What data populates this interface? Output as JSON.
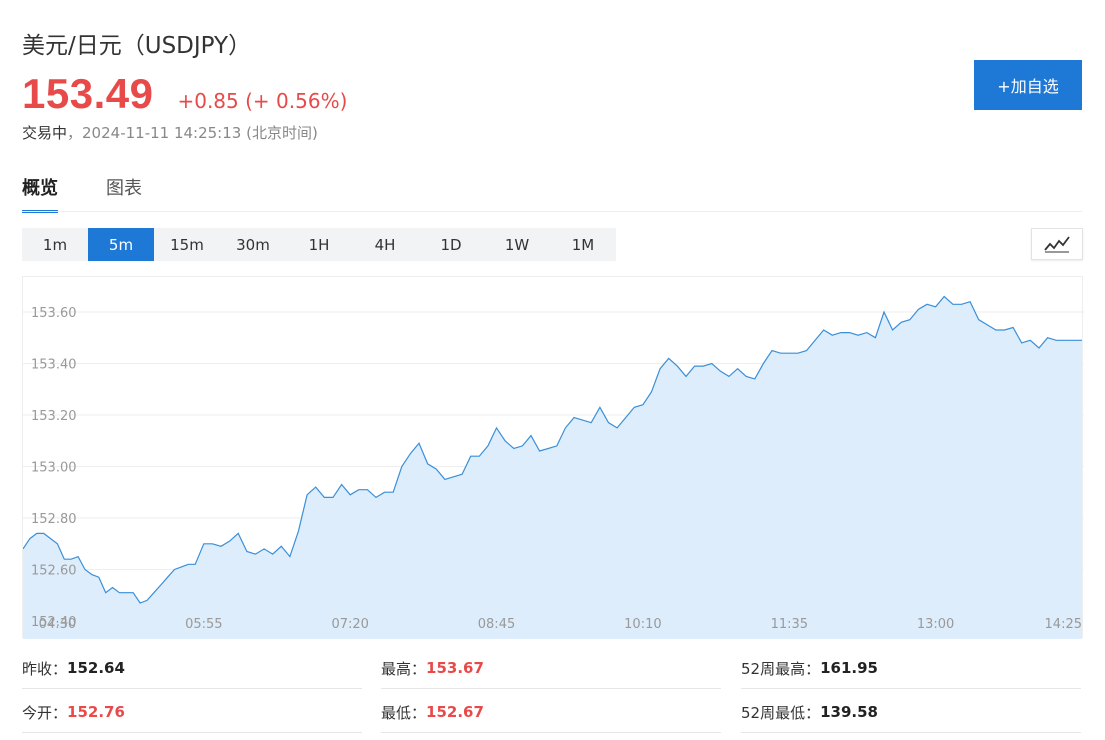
{
  "header": {
    "title": "美元/日元（USDJPY）",
    "price": "153.49",
    "change": "+0.85 (+ 0.56%)",
    "status_label": "交易中",
    "timestamp": "，2024-11-11 14:25:13 (北京时间)",
    "add_button_label": "+加自选"
  },
  "tabs": [
    {
      "label": "概览",
      "active": true
    },
    {
      "label": "图表",
      "active": false
    }
  ],
  "intervals": [
    {
      "label": "1m",
      "active": false
    },
    {
      "label": "5m",
      "active": true
    },
    {
      "label": "15m",
      "active": false
    },
    {
      "label": "30m",
      "active": false
    },
    {
      "label": "1H",
      "active": false
    },
    {
      "label": "4H",
      "active": false
    },
    {
      "label": "1D",
      "active": false
    },
    {
      "label": "1W",
      "active": false
    },
    {
      "label": "1M",
      "active": false
    }
  ],
  "chart_type_icon": "line-chart-icon",
  "colors": {
    "accent": "#1e78d6",
    "up": "#e84a4a",
    "line": "#3a8fd9",
    "fill": "#deedfb"
  },
  "chart_data": {
    "type": "area",
    "title": "",
    "xlabel": "",
    "ylabel": "",
    "ylim": [
      152.4,
      153.7
    ],
    "y_ticks": [
      "152.40",
      "152.60",
      "152.80",
      "153.00",
      "153.20",
      "153.40",
      "153.60"
    ],
    "x_ticks": [
      "04:30",
      "05:55",
      "07:20",
      "08:45",
      "10:10",
      "11:35",
      "13:00",
      "14:25"
    ],
    "x_range_minutes": [
      250,
      865
    ],
    "series": [
      {
        "x_minutes": [
          250,
          254,
          258,
          262,
          266,
          270,
          274,
          278,
          282,
          286,
          290,
          294,
          298,
          302,
          306,
          310,
          314,
          318,
          322,
          326,
          330,
          334,
          338,
          342,
          346,
          350,
          355,
          360,
          365,
          370,
          375,
          380,
          385,
          390,
          395,
          400,
          405,
          410,
          415,
          420,
          425,
          430,
          435,
          440,
          445,
          450,
          455,
          460,
          465,
          470,
          475,
          480,
          485,
          490,
          495,
          500,
          505,
          510,
          515,
          520,
          525,
          530,
          535,
          540,
          545,
          550,
          555,
          560,
          565,
          570,
          575,
          580,
          585,
          590,
          595,
          600,
          605,
          610,
          615,
          620,
          625,
          630,
          635,
          640,
          645,
          650,
          655,
          660,
          665,
          670,
          675,
          680,
          685,
          690,
          695,
          700,
          705,
          710,
          715,
          720,
          725,
          730,
          735,
          740,
          745,
          750,
          755,
          760,
          765,
          770,
          775,
          780,
          785,
          790,
          795,
          800,
          805,
          810,
          815,
          820,
          825,
          830,
          835,
          840,
          845,
          850,
          855,
          860,
          865
        ],
        "values": [
          152.68,
          152.72,
          152.74,
          152.74,
          152.72,
          152.7,
          152.64,
          152.64,
          152.65,
          152.6,
          152.58,
          152.57,
          152.51,
          152.53,
          152.51,
          152.51,
          152.51,
          152.47,
          152.48,
          152.51,
          152.54,
          152.57,
          152.6,
          152.61,
          152.62,
          152.62,
          152.7,
          152.7,
          152.69,
          152.71,
          152.74,
          152.67,
          152.66,
          152.68,
          152.66,
          152.69,
          152.65,
          152.75,
          152.89,
          152.92,
          152.88,
          152.88,
          152.93,
          152.89,
          152.91,
          152.91,
          152.88,
          152.9,
          152.9,
          153.0,
          153.05,
          153.09,
          153.01,
          152.99,
          152.95,
          152.96,
          152.97,
          153.04,
          153.04,
          153.08,
          153.15,
          153.1,
          153.07,
          153.08,
          153.12,
          153.06,
          153.07,
          153.08,
          153.15,
          153.19,
          153.18,
          153.17,
          153.23,
          153.17,
          153.15,
          153.19,
          153.23,
          153.24,
          153.29,
          153.38,
          153.42,
          153.39,
          153.35,
          153.39,
          153.39,
          153.4,
          153.37,
          153.35,
          153.38,
          153.35,
          153.34,
          153.4,
          153.45,
          153.44,
          153.44,
          153.44,
          153.45,
          153.49,
          153.53,
          153.51,
          153.52,
          153.52,
          153.51,
          153.52,
          153.5,
          153.6,
          153.53,
          153.56,
          153.57,
          153.61,
          153.63,
          153.62,
          153.66,
          153.63,
          153.63,
          153.64,
          153.57,
          153.55,
          153.53,
          153.53,
          153.54,
          153.48,
          153.49,
          153.46,
          153.5,
          153.49,
          153.49,
          153.49,
          153.49
        ]
      }
    ]
  },
  "stats": [
    {
      "label": "昨收：",
      "value": "152.64",
      "red": false
    },
    {
      "label": "最高：",
      "value": "153.67",
      "red": true
    },
    {
      "label": "52周最高：",
      "value": "161.95",
      "red": false
    },
    {
      "label": "今开：",
      "value": "152.76",
      "red": true
    },
    {
      "label": "最低：",
      "value": "152.67",
      "red": true
    },
    {
      "label": "52周最低：",
      "value": "139.58",
      "red": false
    }
  ]
}
